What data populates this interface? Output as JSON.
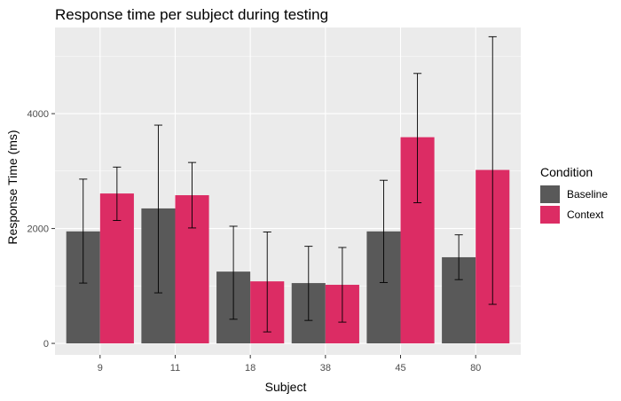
{
  "chart_data": {
    "type": "bar",
    "title": "Response time per subject during testing",
    "xlabel": "Subject",
    "ylabel": "Response Time (ms)",
    "categories": [
      "9",
      "11",
      "18",
      "38",
      "45",
      "80"
    ],
    "ylim": [
      -200,
      5500
    ],
    "yticks": [
      0,
      2000,
      4000
    ],
    "grid": true,
    "legend": {
      "title": "Condition",
      "position": "right"
    },
    "series": [
      {
        "name": "Baseline",
        "color": "#595959",
        "values": [
          1950,
          2350,
          1250,
          1050,
          1950,
          1500
        ],
        "error_low": [
          1050,
          880,
          420,
          400,
          1060,
          1110
        ],
        "error_high": [
          2860,
          3800,
          2040,
          1690,
          2840,
          1890
        ]
      },
      {
        "name": "Context",
        "color": "#dc2c64",
        "values": [
          2610,
          2580,
          1080,
          1020,
          3590,
          3020
        ],
        "error_low": [
          2140,
          2010,
          200,
          370,
          2450,
          680
        ],
        "error_high": [
          3070,
          3150,
          1940,
          1670,
          4700,
          5340
        ]
      }
    ]
  }
}
